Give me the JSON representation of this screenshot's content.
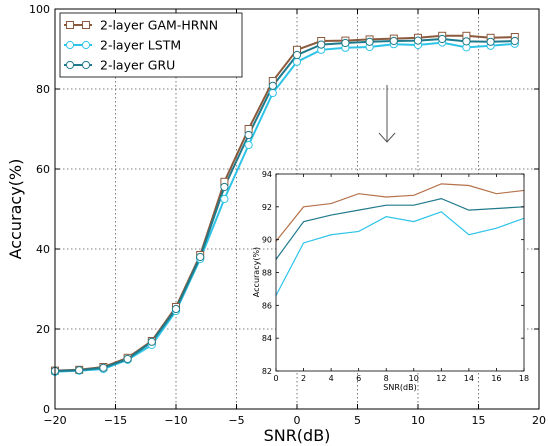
{
  "chart_data": [
    {
      "type": "line",
      "xlabel": "SNR(dB)",
      "ylabel": "Accuracy(%)",
      "xlim": [
        -20,
        20
      ],
      "ylim": [
        0,
        100
      ],
      "xticks": [
        -20,
        -15,
        -10,
        -5,
        0,
        5,
        10,
        15,
        20
      ],
      "yticks": [
        0,
        20,
        40,
        60,
        80,
        100
      ],
      "grid": true,
      "legend": "top-left",
      "x": [
        -20,
        -18,
        -16,
        -14,
        -12,
        -10,
        -8,
        -6,
        -4,
        -2,
        0,
        2,
        4,
        6,
        8,
        10,
        12,
        14,
        16,
        18
      ],
      "series": [
        {
          "name": "2-layer GAM-HRNN",
          "color": "#8b5a3c",
          "marker": "square",
          "values": [
            9.6,
            9.8,
            10.5,
            12.8,
            17.0,
            25.5,
            38.5,
            56.8,
            70.0,
            82.0,
            89.8,
            92.0,
            92.1,
            92.4,
            92.6,
            92.8,
            93.3,
            93.3,
            92.8,
            93.0
          ]
        },
        {
          "name": "2-layer LSTM",
          "color": "#2ec4e8",
          "marker": "circle",
          "values": [
            9.3,
            9.6,
            10.0,
            12.3,
            16.0,
            24.5,
            37.5,
            52.5,
            66.0,
            79.0,
            86.8,
            89.8,
            90.3,
            90.5,
            91.2,
            91.0,
            91.6,
            90.4,
            90.8,
            91.3
          ]
        },
        {
          "name": "2-layer GRU",
          "color": "#1f7a8c",
          "marker": "circle",
          "values": [
            9.5,
            9.7,
            10.3,
            12.5,
            16.8,
            25.0,
            38.0,
            55.5,
            68.5,
            80.8,
            88.5,
            91.1,
            91.5,
            91.8,
            92.0,
            92.1,
            92.5,
            91.9,
            91.8,
            92.0
          ]
        }
      ]
    },
    {
      "type": "line",
      "role": "inset",
      "xlabel": "SNR(dB)",
      "ylabel": "Accuracy(%)",
      "xlim": [
        0,
        18
      ],
      "ylim": [
        82,
        94
      ],
      "xticks": [
        0,
        2,
        4,
        6,
        8,
        10,
        12,
        14,
        16,
        18
      ],
      "yticks": [
        82,
        84,
        86,
        88,
        90,
        92,
        94
      ],
      "grid": false,
      "x": [
        0,
        2,
        4,
        6,
        8,
        10,
        12,
        14,
        16,
        18
      ],
      "series": [
        {
          "name": "2-layer GAM-HRNN",
          "color": "#b5714a",
          "values": [
            89.9,
            92.0,
            92.2,
            92.8,
            92.6,
            92.7,
            93.4,
            93.3,
            92.8,
            93.0
          ]
        },
        {
          "name": "2-layer LSTM",
          "color": "#2ec4e8",
          "values": [
            86.6,
            89.8,
            90.3,
            90.5,
            91.4,
            91.1,
            91.7,
            90.3,
            90.7,
            91.3
          ]
        },
        {
          "name": "2-layer GRU",
          "color": "#1f7a8c",
          "values": [
            88.8,
            91.1,
            91.5,
            91.8,
            92.1,
            92.1,
            92.5,
            91.8,
            91.9,
            92.0
          ]
        }
      ]
    }
  ]
}
